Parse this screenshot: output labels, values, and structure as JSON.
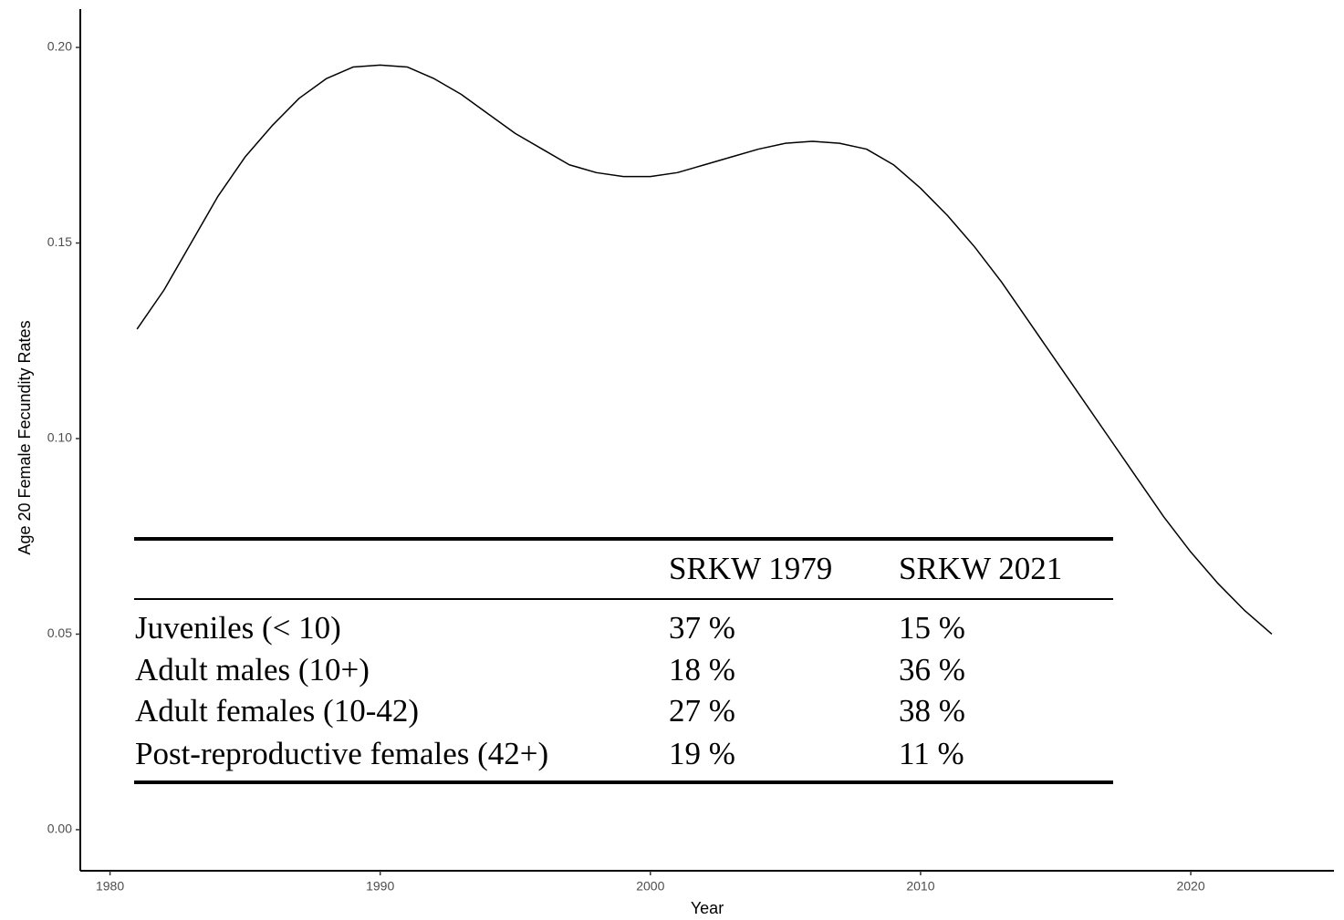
{
  "chart_data": {
    "type": "line",
    "xlabel": "Year",
    "ylabel": "Age 20 Female Fecundity Rates",
    "x": [
      1981,
      1982,
      1983,
      1984,
      1985,
      1986,
      1987,
      1988,
      1989,
      1990,
      1991,
      1992,
      1993,
      1994,
      1995,
      1996,
      1997,
      1998,
      1999,
      2000,
      2001,
      2002,
      2003,
      2004,
      2005,
      2006,
      2007,
      2008,
      2009,
      2010,
      2011,
      2012,
      2013,
      2014,
      2015,
      2016,
      2017,
      2018,
      2019,
      2020,
      2021,
      2022,
      2023
    ],
    "series": [
      {
        "color": "#000000",
        "values": [
          0.128,
          0.138,
          0.15,
          0.162,
          0.172,
          0.18,
          0.187,
          0.192,
          0.195,
          0.1955,
          0.195,
          0.192,
          0.188,
          0.183,
          0.178,
          0.174,
          0.17,
          0.168,
          0.167,
          0.167,
          0.168,
          0.17,
          0.172,
          0.174,
          0.1755,
          0.176,
          0.1755,
          0.174,
          0.17,
          0.164,
          0.157,
          0.149,
          0.14,
          0.13,
          0.12,
          0.11,
          0.1,
          0.09,
          0.08,
          0.071,
          0.063,
          0.056,
          0.05
        ]
      }
    ],
    "xlim": [
      1978.9,
      2025.3
    ],
    "xticks": [
      1980,
      1990,
      2000,
      2010,
      2020
    ],
    "ylim": [
      -0.0105,
      0.2098
    ],
    "yticks": [
      {
        "value": 0,
        "label": "0.00"
      },
      {
        "value": 0.05,
        "label": "0.05"
      },
      {
        "value": 0.1,
        "label": "0.10"
      },
      {
        "value": 0.15,
        "label": "0.15"
      },
      {
        "value": 0.2,
        "label": "0.20"
      }
    ],
    "grid": false,
    "table": {
      "columns": [
        "SRKW 1979",
        "SRKW 2021"
      ],
      "rows": [
        [
          "Juveniles (< 10)",
          "37 %",
          "15 %"
        ],
        [
          "Adult males (10+)",
          "18 %",
          "36 %"
        ],
        [
          "Adult females (10-42)",
          "27 %",
          "38 %"
        ],
        [
          "Post-reproductive females (42+)",
          "19 %",
          "11 %"
        ]
      ]
    }
  }
}
